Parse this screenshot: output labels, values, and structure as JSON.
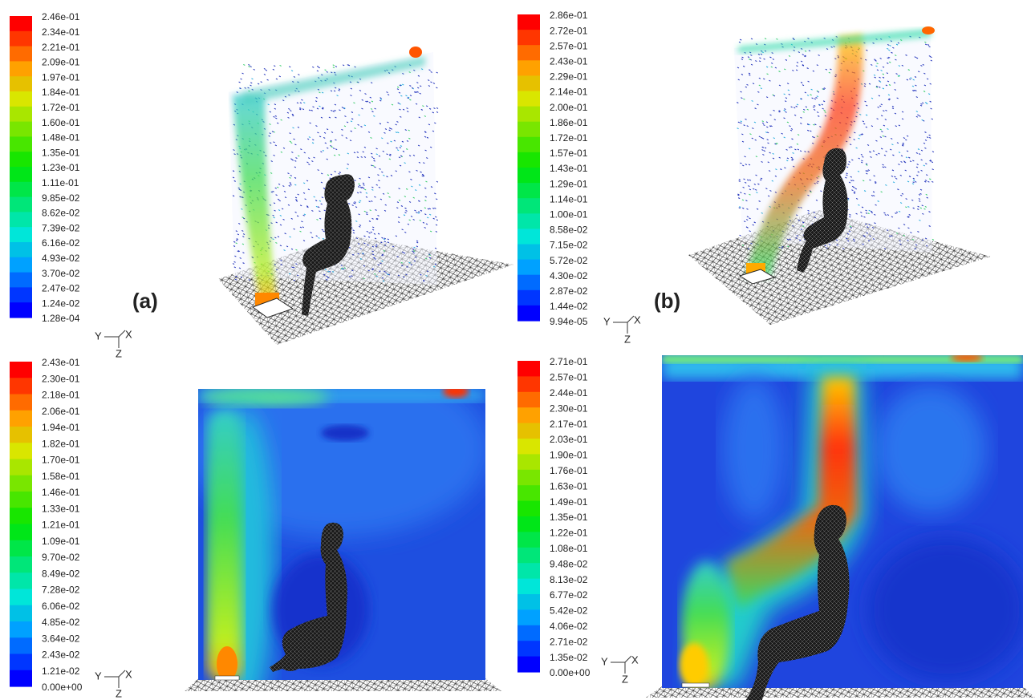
{
  "labels": [
    "(a)",
    "(b)"
  ],
  "colorbars": [
    [
      "2.46e-01",
      "2.34e-01",
      "2.21e-01",
      "2.09e-01",
      "1.97e-01",
      "1.84e-01",
      "1.72e-01",
      "1.60e-01",
      "1.48e-01",
      "1.35e-01",
      "1.23e-01",
      "1.11e-01",
      "9.85e-02",
      "8.62e-02",
      "7.39e-02",
      "6.16e-02",
      "4.93e-02",
      "3.70e-02",
      "2.47e-02",
      "1.24e-02",
      "1.28e-04"
    ],
    [
      "2.86e-01",
      "2.72e-01",
      "2.57e-01",
      "2.43e-01",
      "2.29e-01",
      "2.14e-01",
      "2.00e-01",
      "1.86e-01",
      "1.72e-01",
      "1.57e-01",
      "1.43e-01",
      "1.29e-01",
      "1.14e-01",
      "1.00e-01",
      "8.58e-02",
      "7.15e-02",
      "5.72e-02",
      "4.30e-02",
      "2.87e-02",
      "1.44e-02",
      "9.94e-05"
    ],
    [
      "2.43e-01",
      "2.30e-01",
      "2.18e-01",
      "2.06e-01",
      "1.94e-01",
      "1.82e-01",
      "1.70e-01",
      "1.58e-01",
      "1.46e-01",
      "1.33e-01",
      "1.21e-01",
      "1.09e-01",
      "9.70e-02",
      "8.49e-02",
      "7.28e-02",
      "6.06e-02",
      "4.85e-02",
      "3.64e-02",
      "2.43e-02",
      "1.21e-02",
      "0.00e+00"
    ],
    [
      "2.71e-01",
      "2.57e-01",
      "2.44e-01",
      "2.30e-01",
      "2.17e-01",
      "2.03e-01",
      "1.90e-01",
      "1.76e-01",
      "1.63e-01",
      "1.49e-01",
      "1.35e-01",
      "1.22e-01",
      "1.08e-01",
      "9.48e-02",
      "8.13e-02",
      "6.77e-02",
      "5.42e-02",
      "4.06e-02",
      "2.71e-02",
      "1.35e-02",
      "0.00e+00"
    ]
  ],
  "axes": [
    {
      "y": "Y",
      "x": "X",
      "z": "Z"
    },
    {
      "y": "Y",
      "x": "X",
      "z": "Z"
    },
    {
      "y": "Y",
      "x": "X",
      "z": "Z"
    },
    {
      "y": "Y",
      "x": "X",
      "z": "Z"
    }
  ]
}
